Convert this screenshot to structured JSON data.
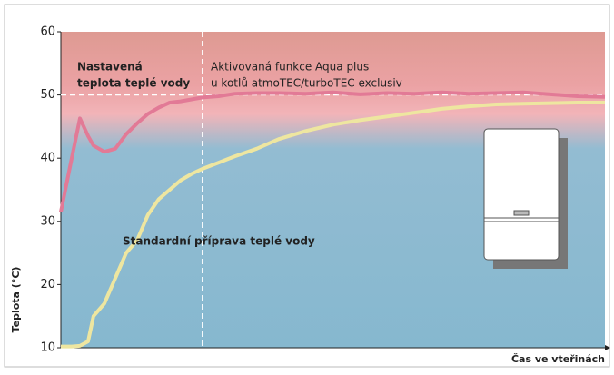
{
  "chart_data": {
    "type": "line",
    "x_label": "Čas ve vteřinách",
    "y_label": "Teplota (°C)",
    "annotations": [
      "Nastavená",
      "teplota teplé vody",
      "Aktivovaná funkce Aqua plus",
      "u kotlů atmoTEC/turboTEC exclusiv",
      "Standardní příprava teplé vody"
    ],
    "x": [
      0,
      2,
      3.5,
      5,
      6,
      8,
      10,
      12,
      14,
      16,
      18,
      20,
      22,
      24,
      26,
      29,
      32,
      36,
      40,
      45,
      50,
      55,
      60,
      65,
      70,
      75,
      80,
      85,
      90,
      95,
      100
    ],
    "series": [
      {
        "color": "#e27a96",
        "values": [
          31.5,
          40,
          46.3,
          43.5,
          42,
          41,
          41.5,
          43.8,
          45.5,
          47,
          48,
          48.8,
          49,
          49.3,
          49.6,
          49.8,
          50.2,
          50.3,
          50.3,
          50.2,
          50.4,
          50.1,
          50.3,
          50.2,
          50.4,
          50.2,
          50.3,
          50.4,
          50.1,
          49.8,
          49.7
        ]
      },
      {
        "color": "#eee6a0",
        "values": [
          10.2,
          10.2,
          10.3,
          11,
          15,
          17,
          21,
          25,
          27,
          31,
          33.5,
          35,
          36.5,
          37.5,
          38.3,
          39.3,
          40.3,
          41.5,
          43,
          44.3,
          45.3,
          46,
          46.6,
          47.2,
          47.8,
          48.2,
          48.5,
          48.6,
          48.7,
          48.8,
          48.8
        ]
      }
    ],
    "setpoint": 50,
    "activation_x": 26,
    "xlim": [
      0,
      100
    ],
    "ylim": [
      10,
      60
    ],
    "yticks": [
      10,
      20,
      30,
      40,
      50,
      60
    ]
  }
}
